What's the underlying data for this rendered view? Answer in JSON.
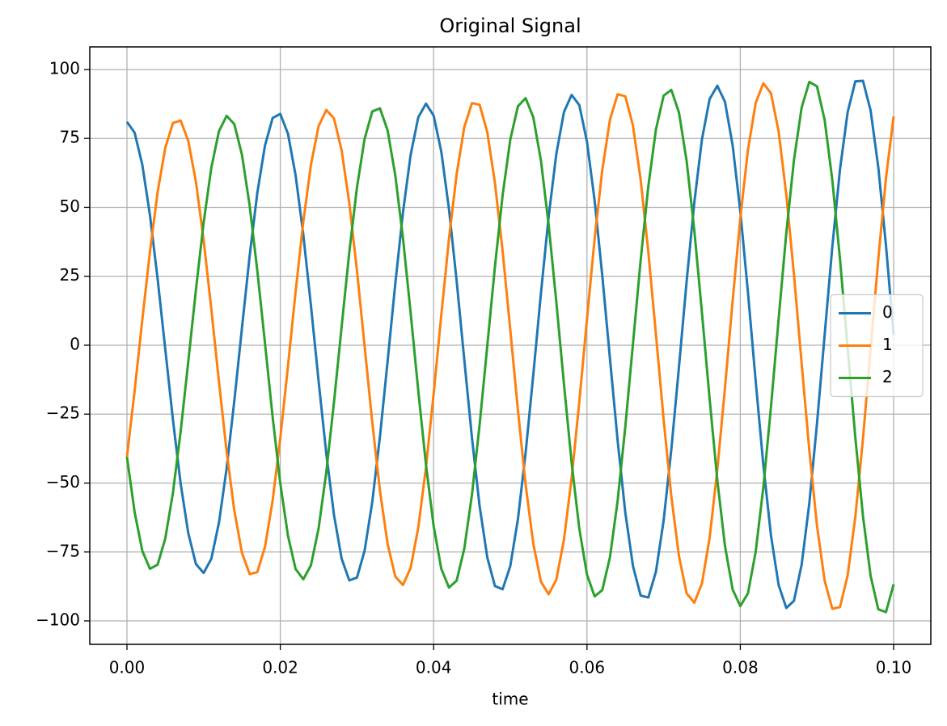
{
  "chart_data": {
    "type": "line",
    "title": "Original Signal",
    "xlabel": "time",
    "x": [
      0,
      0.001,
      0.002,
      0.003,
      0.004,
      0.005,
      0.006,
      0.007,
      0.008,
      0.009,
      0.01,
      0.011,
      0.012,
      0.013,
      0.014,
      0.015,
      0.016,
      0.017,
      0.018,
      0.019,
      0.02,
      0.021,
      0.022,
      0.023,
      0.024,
      0.025,
      0.026,
      0.027,
      0.028,
      0.029,
      0.03,
      0.031,
      0.032,
      0.033,
      0.034,
      0.035,
      0.036,
      0.037,
      0.038,
      0.039,
      0.04,
      0.041,
      0.042,
      0.043,
      0.044,
      0.045,
      0.046,
      0.047,
      0.048,
      0.049,
      0.05,
      0.051,
      0.052,
      0.053,
      0.054,
      0.055,
      0.056,
      0.057,
      0.058,
      0.059,
      0.06,
      0.061,
      0.062,
      0.063,
      0.064,
      0.065,
      0.066,
      0.067,
      0.068,
      0.069,
      0.07,
      0.071,
      0.072,
      0.073,
      0.074,
      0.075,
      0.076,
      0.077,
      0.078,
      0.079,
      0.08,
      0.081,
      0.082,
      0.083,
      0.084,
      0.085,
      0.086,
      0.087,
      0.088,
      0.089,
      0.09,
      0.091,
      0.092,
      0.093,
      0.094,
      0.095,
      0.096,
      0.097,
      0.098,
      0.099,
      0.1
    ],
    "series": [
      {
        "name": "0",
        "color": "#1f77b4",
        "values": [
          81,
          77.1,
          65.5,
          47.2,
          24.1,
          -1.5,
          -27.1,
          -50.1,
          -68.2,
          -79.4,
          -82.6,
          -77.5,
          -64.4,
          -44.7,
          -20.3,
          6.2,
          32.3,
          55.2,
          72.4,
          82.4,
          83.9,
          76.7,
          61.6,
          40.1,
          14.3,
          -13.1,
          -39.3,
          -61.5,
          -77.4,
          -85.3,
          -84.3,
          -74.5,
          -56.8,
          -33.1,
          -5.8,
          22.3,
          48.1,
          69,
          82.7,
          87.6,
          83.3,
          70.2,
          49.4,
          23.4,
          -5.3,
          -33.6,
          -58.4,
          -77,
          -87.4,
          -88.5,
          -80.1,
          -63,
          -39,
          -10.7,
          18.9,
          46.6,
          69.3,
          84.6,
          90.8,
          87.1,
          73.8,
          52.5,
          25.2,
          -4.9,
          -34.6,
          -60.7,
          -80.1,
          -90.8,
          -91.5,
          -82.1,
          -63.6,
          -37.9,
          -7.9,
          23.2,
          51.7,
          74.7,
          89.3,
          94.1,
          88.3,
          72.5,
          48.6,
          19.1,
          -12.8,
          -43.3,
          -69,
          -87,
          -95.3,
          -92.7,
          -79.6,
          -57.4,
          -28.5,
          3.7,
          35.7,
          63.7,
          84.5,
          95.7,
          95.9,
          85.1,
          64.5,
          36.2,
          3.7
        ]
      },
      {
        "name": "1",
        "color": "#ff7f0e",
        "values": [
          -40.5,
          -16.6,
          9.1,
          33.9,
          55.5,
          71.6,
          80.6,
          81.5,
          74.1,
          59.2,
          38.2,
          13.2,
          -13.2,
          -38.5,
          -59.9,
          -75.3,
          -83,
          -82.3,
          -73.2,
          -56.4,
          -33.8,
          -7.6,
          19.5,
          44.8,
          65.5,
          79.5,
          85.3,
          82.3,
          70.7,
          51.6,
          27.1,
          -0.4,
          -28,
          -52.8,
          -72.1,
          -83.9,
          -87,
          -80.8,
          -66.1,
          -44.3,
          -17.7,
          10.9,
          38.5,
          62,
          79.1,
          87.8,
          87.2,
          77.2,
          58.8,
          34.1,
          5.5,
          -23.7,
          -50.6,
          -72,
          -85.8,
          -90.3,
          -85.1,
          -70.5,
          -48.2,
          -20.6,
          9.4,
          38.6,
          63.6,
          81.8,
          91,
          90.3,
          79.6,
          60.1,
          33.9,
          3.8,
          -26.9,
          -54.7,
          -76.5,
          -90,
          -93.4,
          -86.4,
          -69.8,
          -45.2,
          -15.5,
          16.1,
          46,
          70.9,
          87.8,
          95,
          91.4,
          77.5,
          54.6,
          25.6,
          -6.6,
          -38.1,
          -65.4,
          -85.4,
          -95.6,
          -95,
          -83.5,
          -62.3,
          -33.9,
          -1.4,
          31.3,
          60.6,
          83
        ]
      },
      {
        "name": "2",
        "color": "#2ca02c",
        "values": [
          -40.5,
          -60.5,
          -74.6,
          -81.1,
          -79.6,
          -70.1,
          -53.5,
          -31.4,
          -5.9,
          20.2,
          44.4,
          64.3,
          77.6,
          83.2,
          80.2,
          69.1,
          50.7,
          27.1,
          0.8,
          -26,
          -50.1,
          -69.1,
          -81.2,
          -84.9,
          -79.8,
          -66.4,
          -46,
          -20.8,
          6.7,
          33.7,
          57.2,
          74.9,
          84.8,
          85.9,
          77.9,
          61.6,
          38.9,
          11.8,
          -16.6,
          -43.3,
          -65.6,
          -81.1,
          -87.9,
          -85.4,
          -73.8,
          -54.2,
          -28.8,
          -0.2,
          28.6,
          54.4,
          74.6,
          86.7,
          89.6,
          82.7,
          66.9,
          43.7,
          15.8,
          -14.1,
          -42.6,
          -66.5,
          -83.2,
          -91.1,
          -88.8,
          -76.9,
          -56.4,
          -29.6,
          0.5,
          30.7,
          57.6,
          78.3,
          90.5,
          92.6,
          84.4,
          66.8,
          41.7,
          11.7,
          -19.5,
          -48.9,
          -72.8,
          -88.6,
          -94.6,
          -90,
          -75,
          -51.7,
          -22.4,
          9.5,
          40.7,
          67.2,
          86.2,
          95.5,
          93.9,
          81.7,
          59.9,
          31.3,
          -1,
          -33.4,
          -62,
          -83.7,
          -95.8,
          -96.8,
          -86.7
        ]
      }
    ],
    "xlim": [
      -0.00485,
      0.10485
    ],
    "xticks": [
      {
        "value": 0,
        "label": "0.00"
      },
      {
        "value": 0.02,
        "label": "0.02"
      },
      {
        "value": 0.04,
        "label": "0.04"
      },
      {
        "value": 0.06,
        "label": "0.06"
      },
      {
        "value": 0.08,
        "label": "0.08"
      },
      {
        "value": 0.1,
        "label": "0.10"
      }
    ],
    "ylim": [
      -108.5,
      108.2
    ],
    "yticks": [
      {
        "value": -100,
        "label": "−100"
      },
      {
        "value": -75,
        "label": "−75"
      },
      {
        "value": -50,
        "label": "−50"
      },
      {
        "value": -25,
        "label": "−25"
      },
      0,
      25,
      50,
      75,
      100
    ],
    "grid": true,
    "legend": "center right"
  }
}
